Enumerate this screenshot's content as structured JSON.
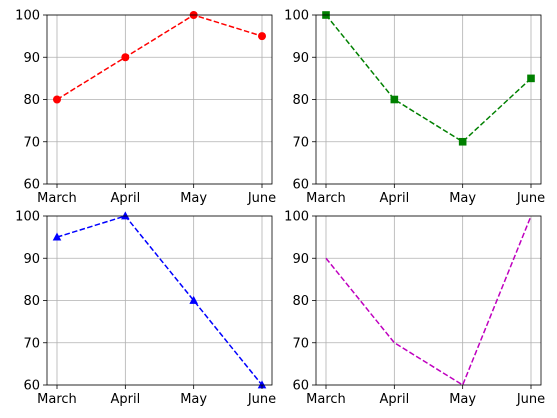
{
  "chart_data": [
    {
      "type": "line",
      "categories": [
        "March",
        "April",
        "May",
        "June"
      ],
      "series": [
        {
          "values": [
            80,
            90,
            100,
            95
          ]
        }
      ],
      "ylim": [
        60,
        100
      ],
      "yticks": [
        60,
        70,
        80,
        90,
        100
      ],
      "line_style": "dashed",
      "marker": "circle",
      "color": "#ff0000",
      "grid": true,
      "title": "",
      "xlabel": "",
      "ylabel": ""
    },
    {
      "type": "line",
      "categories": [
        "March",
        "April",
        "May",
        "June"
      ],
      "series": [
        {
          "values": [
            100,
            80,
            70,
            85
          ]
        }
      ],
      "ylim": [
        60,
        100
      ],
      "yticks": [
        60,
        70,
        80,
        90,
        100
      ],
      "line_style": "dashed",
      "marker": "square",
      "color": "#008000",
      "grid": true,
      "title": "",
      "xlabel": "",
      "ylabel": ""
    },
    {
      "type": "line",
      "categories": [
        "March",
        "April",
        "May",
        "June"
      ],
      "series": [
        {
          "values": [
            95,
            100,
            80,
            60
          ]
        }
      ],
      "ylim": [
        60,
        100
      ],
      "yticks": [
        60,
        70,
        80,
        90,
        100
      ],
      "line_style": "dashed",
      "marker": "triangle",
      "color": "#0000ff",
      "grid": true,
      "title": "",
      "xlabel": "",
      "ylabel": ""
    },
    {
      "type": "line",
      "categories": [
        "March",
        "April",
        "May",
        "June"
      ],
      "series": [
        {
          "values": [
            90,
            70,
            60,
            100
          ]
        }
      ],
      "ylim": [
        60,
        100
      ],
      "yticks": [
        60,
        70,
        80,
        90,
        100
      ],
      "line_style": "dashed",
      "marker": "none",
      "color": "#bf00bf",
      "grid": true,
      "title": "",
      "xlabel": "",
      "ylabel": ""
    }
  ]
}
